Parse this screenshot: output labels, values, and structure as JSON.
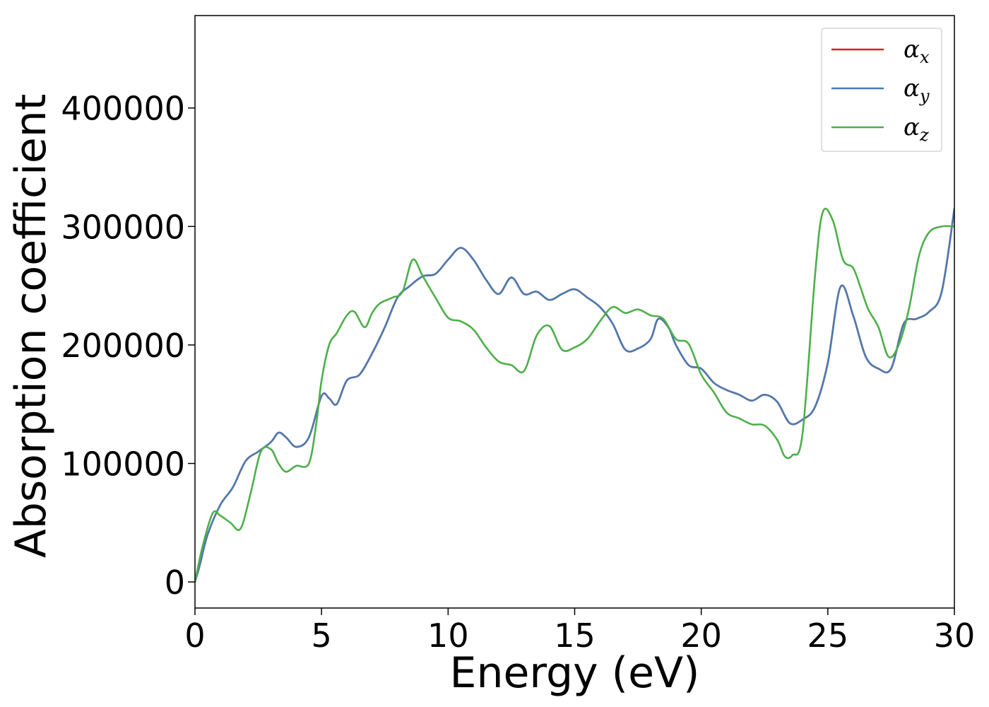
{
  "chart_data": {
    "type": "line",
    "xlabel": "Energy (eV)",
    "ylabel": "Absorption coefficient",
    "xlim": [
      0,
      30
    ],
    "ylim": [
      -22000,
      478000
    ],
    "x_ticks": [
      0,
      5,
      10,
      15,
      20,
      25,
      30
    ],
    "y_ticks": [
      0,
      100000,
      200000,
      300000,
      400000
    ],
    "x_tick_labels": [
      "0",
      "5",
      "10",
      "15",
      "20",
      "25",
      "30"
    ],
    "y_tick_labels": [
      "0",
      "100000",
      "200000",
      "300000",
      "400000"
    ],
    "grid": false,
    "legend_position": "top-right",
    "series": [
      {
        "name": "αx",
        "symbol": "α",
        "subscript": "x",
        "color": "#e41a1c",
        "x": [
          0,
          0.2,
          0.5,
          1.0,
          1.5,
          2.0,
          2.5,
          3.0,
          3.3,
          3.6,
          4.0,
          4.5,
          5.0,
          5.3,
          5.6,
          6.0,
          6.5,
          7.0,
          7.5,
          8.0,
          8.5,
          9.0,
          9.5,
          10.0,
          10.5,
          11.0,
          11.5,
          12.0,
          12.5,
          13.0,
          13.5,
          14.0,
          14.5,
          15.0,
          15.5,
          16.0,
          16.5,
          17.0,
          17.5,
          18.0,
          18.3,
          18.7,
          19.0,
          19.5,
          20.0,
          20.5,
          21.0,
          21.5,
          22.0,
          22.5,
          23.0,
          23.5,
          24.0,
          24.5,
          25.0,
          25.5,
          26.0,
          26.5,
          27.0,
          27.5,
          28.0,
          28.5,
          29.0,
          29.5,
          30.0
        ],
        "values": [
          0,
          15000,
          40000,
          65000,
          80000,
          102000,
          110000,
          118000,
          126000,
          122000,
          114000,
          122000,
          157000,
          155000,
          150000,
          170000,
          175000,
          193000,
          215000,
          240000,
          250000,
          258000,
          260000,
          272000,
          282000,
          272000,
          255000,
          243000,
          257000,
          243000,
          245000,
          238000,
          243000,
          247000,
          240000,
          232000,
          218000,
          196000,
          197000,
          205000,
          222000,
          215000,
          200000,
          183000,
          180000,
          168000,
          162000,
          158000,
          153000,
          158000,
          152000,
          134000,
          137000,
          148000,
          185000,
          249000,
          225000,
          190000,
          180000,
          180000,
          218000,
          222000,
          228000,
          245000,
          315000
        ]
      },
      {
        "name": "αy",
        "symbol": "α",
        "subscript": "y",
        "color": "#4a7bb0",
        "x": [
          0,
          0.2,
          0.5,
          1.0,
          1.5,
          2.0,
          2.5,
          3.0,
          3.3,
          3.6,
          4.0,
          4.5,
          5.0,
          5.3,
          5.6,
          6.0,
          6.5,
          7.0,
          7.5,
          8.0,
          8.5,
          9.0,
          9.5,
          10.0,
          10.5,
          11.0,
          11.5,
          12.0,
          12.5,
          13.0,
          13.5,
          14.0,
          14.5,
          15.0,
          15.5,
          16.0,
          16.5,
          17.0,
          17.5,
          18.0,
          18.3,
          18.7,
          19.0,
          19.5,
          20.0,
          20.5,
          21.0,
          21.5,
          22.0,
          22.5,
          23.0,
          23.5,
          24.0,
          24.5,
          25.0,
          25.5,
          26.0,
          26.5,
          27.0,
          27.5,
          28.0,
          28.5,
          29.0,
          29.5,
          30.0
        ],
        "values": [
          0,
          15000,
          40000,
          65000,
          80000,
          102000,
          110000,
          118000,
          126000,
          122000,
          114000,
          122000,
          157000,
          155000,
          150000,
          170000,
          175000,
          193000,
          215000,
          240000,
          250000,
          258000,
          260000,
          272000,
          282000,
          272000,
          255000,
          243000,
          257000,
          243000,
          245000,
          238000,
          243000,
          247000,
          240000,
          232000,
          218000,
          196000,
          197000,
          205000,
          222000,
          215000,
          200000,
          183000,
          180000,
          168000,
          162000,
          158000,
          153000,
          158000,
          152000,
          134000,
          137000,
          148000,
          185000,
          249000,
          225000,
          190000,
          180000,
          180000,
          218000,
          222000,
          228000,
          245000,
          315000
        ]
      },
      {
        "name": "αz",
        "symbol": "α",
        "subscript": "z",
        "color": "#4daf4a",
        "x": [
          0,
          0.3,
          0.7,
          1.0,
          1.4,
          1.8,
          2.2,
          2.6,
          3.0,
          3.3,
          3.6,
          4.0,
          4.5,
          4.8,
          5.0,
          5.3,
          5.6,
          6.0,
          6.3,
          6.7,
          7.0,
          7.3,
          7.8,
          8.2,
          8.6,
          9.0,
          9.5,
          10.0,
          10.5,
          11.0,
          11.5,
          12.0,
          12.5,
          13.0,
          13.5,
          14.0,
          14.5,
          15.0,
          15.5,
          16.0,
          16.5,
          17.0,
          17.5,
          18.0,
          18.5,
          19.0,
          19.5,
          20.0,
          20.5,
          21.0,
          21.5,
          22.0,
          22.5,
          23.0,
          23.3,
          23.6,
          24.0,
          24.5,
          24.8,
          25.2,
          25.6,
          26.0,
          26.3,
          26.6,
          27.0,
          27.4,
          27.8,
          28.2,
          28.6,
          29.0,
          29.5,
          30.0
        ],
        "values": [
          0,
          30000,
          58000,
          56000,
          50000,
          45000,
          75000,
          110000,
          112000,
          100000,
          93000,
          98000,
          100000,
          135000,
          170000,
          200000,
          210000,
          225000,
          228000,
          215000,
          227000,
          235000,
          240000,
          245000,
          272000,
          258000,
          240000,
          223000,
          220000,
          213000,
          198000,
          186000,
          183000,
          178000,
          208000,
          216000,
          196000,
          198000,
          205000,
          220000,
          232000,
          227000,
          230000,
          225000,
          222000,
          205000,
          201000,
          175000,
          160000,
          143000,
          138000,
          133000,
          132000,
          120000,
          106000,
          107000,
          125000,
          260000,
          312000,
          305000,
          272000,
          265000,
          248000,
          230000,
          215000,
          190000,
          200000,
          230000,
          275000,
          295000,
          300000,
          300000
        ]
      }
    ]
  }
}
